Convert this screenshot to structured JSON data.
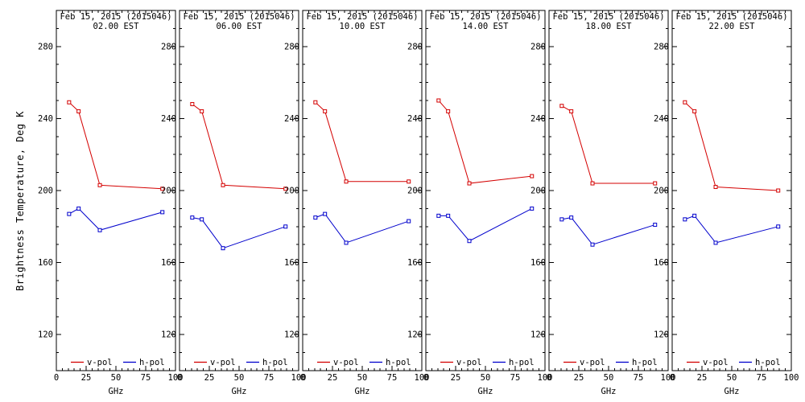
{
  "figure": {
    "background": "#ffffff",
    "text_color": "#000000"
  },
  "chart_data": {
    "type": "line",
    "description": "Six side-by-side panels of brightness temperature vs frequency, v-pol and h-pol, at six observation times",
    "x": [
      10.7,
      18.7,
      36.5,
      89.0
    ],
    "xlabel": "GHz",
    "ylabel": "Brightness Temperature, Deg K",
    "xlim": [
      0,
      100
    ],
    "ylim": [
      100,
      300
    ],
    "x_major_ticks": [
      0,
      25,
      50,
      75,
      100
    ],
    "x_minor_step": 5,
    "y_major_ticks": [
      120,
      160,
      200,
      240,
      280
    ],
    "y_minor_step": 10,
    "grid": false,
    "legend": [
      "v-pol",
      "h-pol"
    ],
    "legend_position": "bottom-inside",
    "colors": {
      "v-pol": "#d40000",
      "h-pol": "#0000cc"
    },
    "marker": "open-square",
    "panels": [
      {
        "title": "Feb 15, 2015 (2015046)",
        "subtitle": "02.00 EST",
        "series": [
          {
            "name": "v-pol",
            "values": [
              249,
              244,
              203,
              201
            ]
          },
          {
            "name": "h-pol",
            "values": [
              187,
              190,
              178,
              188
            ]
          }
        ]
      },
      {
        "title": "Feb 15, 2015 (2015046)",
        "subtitle": "06.00 EST",
        "series": [
          {
            "name": "v-pol",
            "values": [
              248,
              244,
              203,
              201
            ]
          },
          {
            "name": "h-pol",
            "values": [
              185,
              184,
              168,
              180
            ]
          }
        ]
      },
      {
        "title": "Feb 15, 2015 (2015046)",
        "subtitle": "10.00 EST",
        "series": [
          {
            "name": "v-pol",
            "values": [
              249,
              244,
              205,
              205
            ]
          },
          {
            "name": "h-pol",
            "values": [
              185,
              187,
              171,
              183
            ]
          }
        ]
      },
      {
        "title": "Feb 15, 2015 (2015046)",
        "subtitle": "14.00 EST",
        "series": [
          {
            "name": "v-pol",
            "values": [
              250,
              244,
              204,
              208
            ]
          },
          {
            "name": "h-pol",
            "values": [
              186,
              186,
              172,
              190
            ]
          }
        ]
      },
      {
        "title": "Feb 15, 2015 (2015046)",
        "subtitle": "18.00 EST",
        "series": [
          {
            "name": "v-pol",
            "values": [
              247,
              244,
              204,
              204
            ]
          },
          {
            "name": "h-pol",
            "values": [
              184,
              185,
              170,
              181
            ]
          }
        ]
      },
      {
        "title": "Feb 15, 2015 (2015046)",
        "subtitle": "22.00 EST",
        "series": [
          {
            "name": "v-pol",
            "values": [
              249,
              244,
              202,
              200
            ]
          },
          {
            "name": "h-pol",
            "values": [
              184,
              186,
              171,
              180
            ]
          }
        ]
      }
    ]
  }
}
